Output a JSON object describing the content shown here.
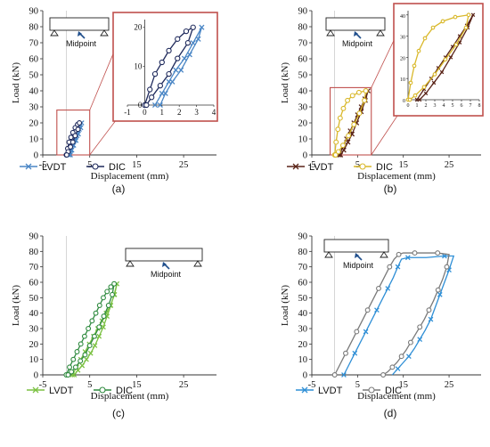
{
  "figure": {
    "colors": {
      "lvdt_a": "#4a86c5",
      "dic_a": "#1f2a5c",
      "lvdt_b": "#5a2418",
      "dic_b": "#d9b82a",
      "lvdt_c": "#7bc142",
      "dic_c": "#2f8a3f",
      "lvdt_d": "#2f8fd6",
      "dic_d": "#7a7a7a",
      "zoom_box": "#c0504d",
      "inset_frame": "#c0504d"
    }
  },
  "chart_data": [
    {
      "id": "a",
      "type": "line",
      "caption": "(a)",
      "xlabel": "Displacement (mm)",
      "ylabel": "Load (kN)",
      "xlim": [
        -5,
        32
      ],
      "ylim": [
        0,
        90
      ],
      "x_ticks": [
        -5,
        5,
        15,
        25
      ],
      "y_ticks": [
        0,
        10,
        20,
        30,
        40,
        50,
        60,
        70,
        80,
        90
      ],
      "legend": [
        "LVDT",
        "DIC"
      ],
      "callout_label": "Midpoint",
      "series": [
        {
          "name": "LVDT",
          "marker": "x",
          "x": [
            0.6,
            1.0,
            1.4,
            1.8,
            2.3,
            2.8,
            3.3,
            3.1,
            2.6,
            2.1,
            1.6,
            1.2,
            0.9
          ],
          "y": [
            0,
            3,
            6,
            9,
            12,
            16,
            20,
            17,
            13,
            9,
            6,
            3,
            0
          ]
        },
        {
          "name": "DIC",
          "marker": "o",
          "x": [
            0,
            0.3,
            0.6,
            1.0,
            1.4,
            1.9,
            2.4,
            2.8,
            2.5,
            1.9,
            1.4,
            0.9,
            0.4,
            0.1
          ],
          "y": [
            0,
            4,
            8,
            11,
            14,
            17,
            19,
            20,
            16,
            12,
            8,
            5,
            2,
            0
          ]
        }
      ],
      "inset": {
        "xlim": [
          -1,
          4
        ],
        "ylim": [
          0,
          22
        ],
        "x_ticks": [
          -1,
          0,
          1,
          2,
          3,
          4
        ],
        "y_ticks": [
          0,
          10,
          20
        ],
        "zoom_region": {
          "xlim": [
            -2,
            5
          ],
          "ylim": [
            0,
            28
          ]
        }
      }
    },
    {
      "id": "b",
      "type": "line",
      "caption": "(b)",
      "xlabel": "Displacement (mm)",
      "ylabel": "Load (kN)",
      "xlim": [
        -5,
        32
      ],
      "ylim": [
        0,
        90
      ],
      "x_ticks": [
        -5,
        5,
        15,
        25
      ],
      "y_ticks": [
        0,
        10,
        20,
        30,
        40,
        50,
        60,
        70,
        80,
        90
      ],
      "legend": [
        "LVDT",
        "DIC"
      ],
      "callout_label": "Midpoint",
      "series": [
        {
          "name": "LVDT",
          "marker": "x",
          "x": [
            1.0,
            1.8,
            2.6,
            3.4,
            4.2,
            5.0,
            5.8,
            6.6,
            7.3,
            6.7,
            5.8,
            4.8,
            3.8,
            2.9,
            2.0,
            1.3
          ],
          "y": [
            0,
            5,
            10,
            15,
            20,
            25,
            30,
            35,
            40,
            34,
            27,
            20,
            13,
            8,
            3,
            0
          ]
        },
        {
          "name": "DIC",
          "marker": "o",
          "x": [
            0,
            0.3,
            0.7,
            1.2,
            1.9,
            2.8,
            3.9,
            5.3,
            6.8,
            6.5,
            5.4,
            4.2,
            3.0,
            1.8,
            0.8,
            0.2
          ],
          "y": [
            0,
            8,
            16,
            23,
            29,
            34,
            37,
            39,
            40,
            34,
            26,
            19,
            12,
            6,
            2,
            0
          ]
        }
      ],
      "inset": {
        "xlim": [
          0,
          8
        ],
        "ylim": [
          0,
          42
        ],
        "x_ticks": [
          0,
          1,
          2,
          3,
          4,
          5,
          6,
          7,
          8
        ],
        "y_ticks": [
          0,
          10,
          20,
          30,
          40
        ],
        "zoom_region": {
          "xlim": [
            -1,
            8
          ],
          "ylim": [
            0,
            42
          ]
        }
      }
    },
    {
      "id": "c",
      "type": "line",
      "caption": "(c)",
      "xlabel": "Displacement (mm)",
      "ylabel": "Load (kN)",
      "xlim": [
        -5,
        32
      ],
      "ylim": [
        0,
        90
      ],
      "x_ticks": [
        -5,
        5,
        15,
        25
      ],
      "y_ticks": [
        0,
        10,
        20,
        30,
        40,
        50,
        60,
        70,
        80,
        90
      ],
      "legend": [
        "LVDT",
        "DIC"
      ],
      "callout_label": "Midpoint",
      "series": [
        {
          "name": "LVDT",
          "marker": "x",
          "x": [
            1.3,
            2.2,
            3.1,
            4.0,
            4.9,
            5.8,
            6.7,
            7.6,
            8.5,
            9.4,
            10.3,
            10.8,
            10.2,
            9.5,
            8.7,
            7.9,
            7.0,
            6.1,
            5.2,
            4.3,
            3.4,
            2.5,
            1.7
          ],
          "y": [
            0,
            5,
            10,
            15,
            20,
            25,
            30,
            35,
            40,
            45,
            52,
            59,
            52,
            45,
            38,
            31,
            25,
            19,
            14,
            10,
            6,
            3,
            0
          ]
        },
        {
          "name": "DIC",
          "marker": "o",
          "x": [
            0,
            0.7,
            1.5,
            2.3,
            3.1,
            3.9,
            4.7,
            5.5,
            6.3,
            7.1,
            7.9,
            8.7,
            9.5,
            10.2,
            9.8,
            9.0,
            8.0,
            7.0,
            6.0,
            5.0,
            4.0,
            3.0,
            2.0,
            1.1,
            0.4
          ],
          "y": [
            0,
            5,
            10,
            15,
            20,
            25,
            30,
            35,
            40,
            45,
            50,
            54,
            57,
            59,
            52,
            45,
            38,
            31,
            25,
            19,
            13,
            9,
            5,
            2,
            0
          ]
        }
      ]
    },
    {
      "id": "d",
      "type": "line",
      "caption": "(d)",
      "xlabel": "Displacement (mm)",
      "ylabel": "Load (kN)",
      "xlim": [
        -5,
        32
      ],
      "ylim": [
        0,
        90
      ],
      "x_ticks": [
        -5,
        5,
        15,
        25
      ],
      "y_ticks": [
        0,
        10,
        20,
        30,
        40,
        50,
        60,
        70,
        80,
        90
      ],
      "legend": [
        "LVDT",
        "DIC"
      ],
      "callout_label": "Midpoint",
      "series": [
        {
          "name": "LVDT",
          "marker": "x",
          "x": [
            2.0,
            3.2,
            4.4,
            5.6,
            6.8,
            8.0,
            9.2,
            10.4,
            11.6,
            12.8,
            13.8,
            14.6,
            16.0,
            20.0,
            24.0,
            26.0,
            25.0,
            24.0,
            23.0,
            22.0,
            21.0,
            19.8,
            18.6,
            17.4,
            16.2,
            15.0,
            13.8,
            12.6
          ],
          "y": [
            0,
            7,
            14,
            21,
            28,
            35,
            42,
            49,
            56,
            63,
            70,
            75,
            76,
            76,
            77,
            77,
            68,
            60,
            52,
            44,
            36,
            29,
            23,
            17,
            12,
            8,
            4,
            0
          ]
        },
        {
          "name": "DIC",
          "marker": "o",
          "x": [
            0,
            1.2,
            2.4,
            3.6,
            4.8,
            6.0,
            7.2,
            8.4,
            9.6,
            10.8,
            12.0,
            13.0,
            14.0,
            15.0,
            17.5,
            20.0,
            22.5,
            25.0,
            24.5,
            23.6,
            22.6,
            21.6,
            20.6,
            19.6,
            18.6,
            17.6,
            16.6,
            15.6,
            14.6,
            13.6,
            12.6,
            11.6,
            10.6
          ],
          "y": [
            0,
            7,
            14,
            21,
            28,
            35,
            42,
            49,
            56,
            63,
            70,
            75,
            78,
            79,
            79,
            79,
            79,
            78,
            70,
            62,
            55,
            48,
            42,
            36,
            31,
            26,
            21,
            16,
            12,
            8,
            5,
            2,
            0
          ]
        }
      ]
    }
  ]
}
